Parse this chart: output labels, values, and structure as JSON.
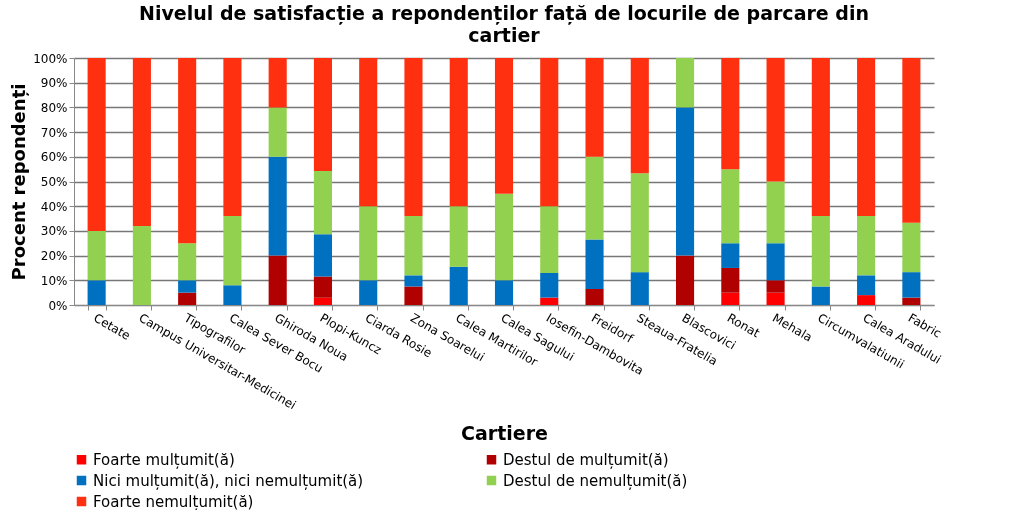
{
  "chart_data": {
    "type": "bar",
    "stacked": true,
    "title": "Nivelul de satisfacție a repondenților față de locurile de parcare din  cartier",
    "xlabel": "Cartiere",
    "ylabel": "Procent repondenți",
    "categories": [
      "Cetate",
      "Campus Universitar-Medicinei",
      "Tipografilor",
      "Calea Sever Bocu",
      "Ghiroda Noua",
      "Plopi-Kuncz",
      "Ciarda Rosie",
      "Zona Soarelui",
      "Calea Martirilor",
      "Calea Sagului",
      "Iosefin-Dambovita",
      "Freidorf",
      "Steaua-Fratelia",
      "Blascovici",
      "Ronat",
      "Mehala",
      "Circumvalatiunii",
      "Calea Aradului",
      "Fabric"
    ],
    "series": [
      {
        "name": "Foarte mulțumit(ă)",
        "color": "#ff0000",
        "values": [
          0,
          0,
          0,
          0,
          0,
          2.9,
          0,
          0,
          0,
          0,
          3,
          0,
          0,
          0,
          5,
          5,
          0,
          4,
          0
        ]
      },
      {
        "name": "Destul de mulțumit(ă)",
        "color": "#b00000",
        "values": [
          0,
          0,
          5,
          0,
          20,
          8.6,
          0,
          7.5,
          0,
          0,
          0,
          6.5,
          0,
          20,
          10,
          5,
          0,
          0,
          3
        ]
      },
      {
        "name": "Nici mulțumit(ă), nici nemulțumit(ă)",
        "color": "#0070c0",
        "values": [
          10,
          0,
          5,
          8,
          40,
          17.1,
          10,
          4.5,
          15.5,
          10,
          10,
          20,
          13.3,
          60,
          10,
          15,
          7.5,
          8,
          10.3
        ]
      },
      {
        "name": "Destul de nemulțumit(ă)",
        "color": "#92d050",
        "values": [
          20,
          32,
          15,
          28,
          20,
          25.7,
          30,
          24,
          24.5,
          35,
          27,
          33.5,
          40,
          20,
          30,
          25,
          28.5,
          24,
          20
        ]
      },
      {
        "name": "Foarte nemulțumit(ă)",
        "color": "#ff3010",
        "values": [
          70,
          68,
          75,
          64,
          20,
          45.7,
          60,
          64,
          60,
          55,
          60,
          40,
          46.7,
          0,
          45,
          50,
          64,
          64,
          66.7
        ]
      }
    ],
    "ylim": [
      0,
      100
    ],
    "yticks": [
      {
        "value": 0,
        "label": "0%"
      },
      {
        "value": 10,
        "label": "10%"
      },
      {
        "value": 20,
        "label": "20%"
      },
      {
        "value": 30,
        "label": "30%"
      },
      {
        "value": 40,
        "label": "40%"
      },
      {
        "value": 50,
        "label": "50%"
      },
      {
        "value": 60,
        "label": "60%"
      },
      {
        "value": 70,
        "label": "70%"
      },
      {
        "value": 80,
        "label": "80%"
      },
      {
        "value": 90,
        "label": "90%"
      },
      {
        "value": 100,
        "label": "100%"
      }
    ],
    "grid": "y",
    "legend": "bottom"
  }
}
